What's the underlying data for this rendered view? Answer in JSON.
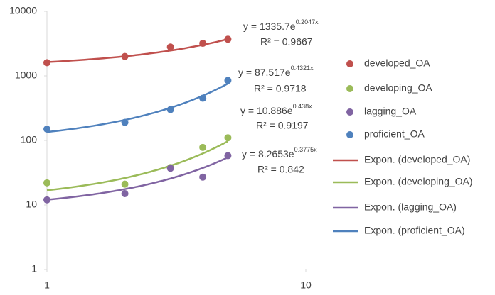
{
  "chart_data": {
    "type": "scatter",
    "x_scale": "log",
    "y_scale": "log",
    "xlim": [
      1,
      10
    ],
    "xticks": [
      1,
      10
    ],
    "ylim": [
      1,
      10000
    ],
    "yticks": [
      1,
      10,
      100,
      1000,
      10000
    ],
    "grid": false,
    "legend": "right",
    "series": [
      {
        "name": "developed_OA",
        "color": "#c0504d",
        "x": [
          1,
          2,
          3,
          4,
          5
        ],
        "values": [
          1600,
          2000,
          2800,
          3200,
          3700
        ],
        "trendline": {
          "name": "Expon. (developed_OA)",
          "a": 1335.7,
          "b": 0.2047,
          "equation": "y = 1335.7e",
          "exponent": "0.2047x",
          "r_squared": "R² = 0.9667"
        }
      },
      {
        "name": "developing_OA",
        "color": "#9bbb59",
        "x": [
          1,
          2,
          3,
          4,
          5
        ],
        "values": [
          22,
          21,
          38,
          78,
          110
        ],
        "trendline": {
          "name": "Expon. (developing_OA)",
          "a": 10.886,
          "b": 0.438,
          "equation": "y = 10.886e",
          "exponent": "0.438x",
          "r_squared": "R² = 0.9197"
        }
      },
      {
        "name": "lagging_OA",
        "color": "#8064a2",
        "x": [
          1,
          2,
          3,
          4,
          5
        ],
        "values": [
          12,
          15,
          37,
          27,
          58
        ],
        "trendline": {
          "name": "Expon. (lagging_OA)",
          "a": 8.2653,
          "b": 0.3775,
          "equation": "y = 8.2653e",
          "exponent": "0.3775x",
          "r_squared": "R² = 0.842"
        }
      },
      {
        "name": "proficient_OA",
        "color": "#4f81bd",
        "x": [
          1,
          2,
          3,
          4,
          5
        ],
        "values": [
          150,
          190,
          300,
          450,
          850
        ],
        "trendline": {
          "name": "Expon. (proficient_OA)",
          "a": 87.517,
          "b": 0.4321,
          "equation": "y = 87.517e",
          "exponent": "0.4321x",
          "r_squared": "R² = 0.9718"
        }
      }
    ]
  }
}
